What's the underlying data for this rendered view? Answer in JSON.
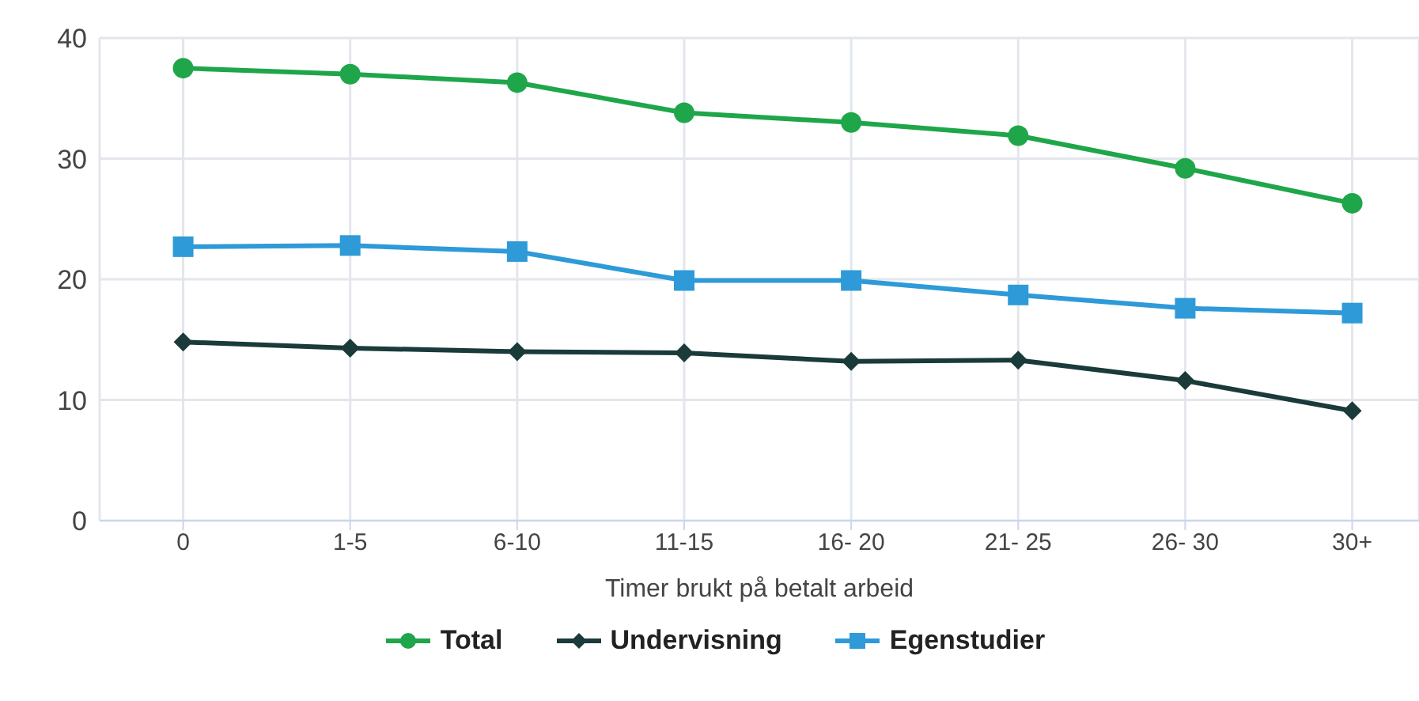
{
  "chart_data": {
    "type": "line",
    "xlabel": "Timer brukt på betalt arbeid",
    "categories": [
      "0",
      "1-5",
      "6-10",
      "11-15",
      "16- 20",
      "21- 25",
      "26- 30",
      "30+"
    ],
    "series": [
      {
        "name": "Total",
        "color": "#1fa64a",
        "marker": "circle",
        "values": [
          37.5,
          37.0,
          36.3,
          33.8,
          33.0,
          31.9,
          29.2,
          26.3
        ]
      },
      {
        "name": "Undervisning",
        "color": "#1b3a3a",
        "marker": "diamond",
        "values": [
          14.8,
          14.3,
          14.0,
          13.9,
          13.2,
          13.3,
          11.6,
          9.1
        ]
      },
      {
        "name": "Egenstudier",
        "color": "#2e9ad8",
        "marker": "square",
        "values": [
          22.7,
          22.8,
          22.3,
          19.9,
          19.9,
          18.7,
          17.6,
          17.2
        ]
      }
    ],
    "ylim": [
      0,
      40
    ],
    "yticks": [
      0,
      10,
      20,
      30,
      40
    ],
    "grid": true,
    "legend": "bottom",
    "line_style": "solid"
  }
}
